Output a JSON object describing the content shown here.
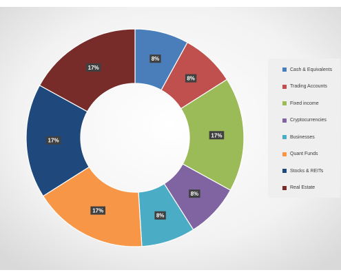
{
  "chart_data": {
    "type": "pie",
    "variant": "donut",
    "categories": [
      "Cash & Equivalents",
      "Trading Accounts",
      "Fixed income",
      "Cryptocurrencies",
      "Businesses",
      "Quant Funds",
      "Stocks & REITs",
      "Real Estate"
    ],
    "values": [
      8,
      8,
      17,
      8,
      8,
      17,
      17,
      17
    ],
    "data_labels": [
      "8%",
      "8%",
      "17%",
      "8%",
      "8%",
      "17%",
      "17%",
      "17%"
    ],
    "colors": [
      "#4a7ebb",
      "#c0504d",
      "#9bbb59",
      "#8064a2",
      "#4bacc6",
      "#f79646",
      "#1f497d",
      "#772c2a"
    ],
    "legend_position": "right",
    "background": "radial-gradient-light-gray"
  }
}
